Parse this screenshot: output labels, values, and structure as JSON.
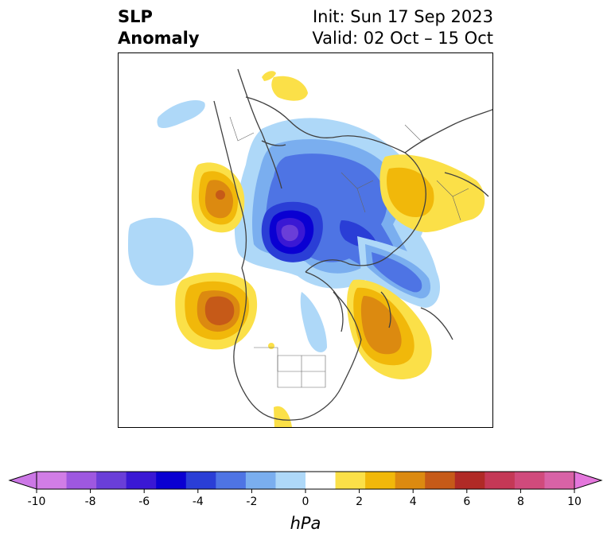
{
  "title": {
    "left_line1": "SLP",
    "left_line2": "Anomaly",
    "right_line1": "Init: Sun 17 Sep 2023",
    "right_line2": "Valid: 02 Oct – 15 Oct"
  },
  "map": {
    "projection": "polar stereographic (north pole)",
    "variable": "sea level pressure anomaly",
    "features": [
      {
        "name": "arctic-low",
        "sign": "negative",
        "peak_hpa": -8.5,
        "region": "Arctic Ocean north of Alaska / Siberia"
      },
      {
        "name": "north-atlantic-high",
        "sign": "positive",
        "peak_hpa": 3.5,
        "region": "North Atlantic east of Newfoundland"
      },
      {
        "name": "north-pacific-high",
        "sign": "positive",
        "peak_hpa": 4.5,
        "region": "Northeast Pacific west of Canada"
      },
      {
        "name": "europe-high",
        "sign": "positive",
        "peak_hpa": 2.5,
        "region": "Northern Europe / Scandinavia"
      },
      {
        "name": "east-asia-high",
        "sign": "positive",
        "peak_hpa": 4.5,
        "region": "East Asia / Sea of Okhotsk"
      },
      {
        "name": "central-pacific-low",
        "sign": "negative",
        "peak_hpa": -1.5,
        "region": "Central Pacific"
      },
      {
        "name": "mediterranean-high",
        "sign": "positive",
        "peak_hpa": 1.5,
        "region": "Black Sea"
      }
    ]
  },
  "colorbar": {
    "units": "hPa",
    "ticks": [
      "-10",
      "-8",
      "-6",
      "-4",
      "-2",
      "0",
      "2",
      "4",
      "6",
      "8",
      "10"
    ],
    "under_color": "#cc77e6",
    "over_color": "#e477dc",
    "colors": [
      "#d17de6",
      "#9e58e0",
      "#6a3ed8",
      "#3a18d4",
      "#0a00d2",
      "#2a3ed6",
      "#4e74e4",
      "#7aaeef",
      "#aed8f8",
      "#ffffff",
      "#fbe048",
      "#f1b80a",
      "#dc8a10",
      "#c65a18",
      "#b02a26",
      "#c43856",
      "#d04a7c",
      "#d862a6"
    ]
  }
}
